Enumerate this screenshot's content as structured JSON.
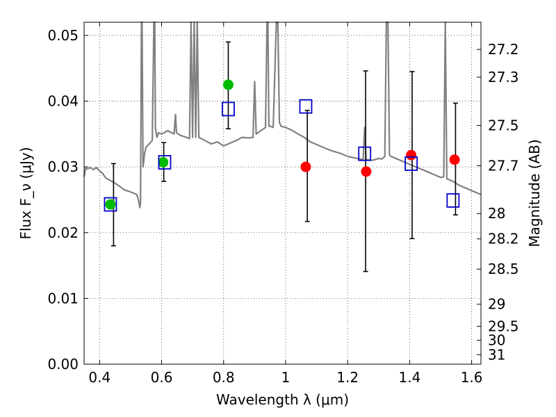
{
  "chart_data": {
    "type": "scatter",
    "xlabel": "Wavelength λ (μm)",
    "ylabel": "Flux F_ν (μJy)",
    "y2label": "Magnitude (AB)",
    "xlim": [
      0.35,
      1.63
    ],
    "ylim": [
      0.0,
      0.052
    ],
    "grid": true,
    "x_ticks": [
      {
        "value": 0.4,
        "label": "0.4"
      },
      {
        "value": 0.6,
        "label": "0.6"
      },
      {
        "value": 0.8,
        "label": "0.8"
      },
      {
        "value": 1.0,
        "label": "1"
      },
      {
        "value": 1.2,
        "label": "1.2"
      },
      {
        "value": 1.4,
        "label": "1.4"
      },
      {
        "value": 1.6,
        "label": "1.6"
      }
    ],
    "y_ticks": [
      {
        "value": 0.0,
        "label": "0.00"
      },
      {
        "value": 0.01,
        "label": "0.01"
      },
      {
        "value": 0.02,
        "label": "0.02"
      },
      {
        "value": 0.03,
        "label": "0.03"
      },
      {
        "value": 0.04,
        "label": "0.04"
      },
      {
        "value": 0.05,
        "label": "0.05"
      }
    ],
    "y2_ticks": [
      {
        "value": 27.2,
        "label": "27.2"
      },
      {
        "value": 27.3,
        "label": "27.3"
      },
      {
        "value": 27.5,
        "label": "27.5"
      },
      {
        "value": 27.7,
        "label": "27.7"
      },
      {
        "value": 28,
        "label": "28"
      },
      {
        "value": 28.2,
        "label": "28.2"
      },
      {
        "value": 28.5,
        "label": "28.5"
      },
      {
        "value": 29,
        "label": "29"
      },
      {
        "value": 29.5,
        "label": "29.5"
      },
      {
        "value": 30,
        "label": "30"
      },
      {
        "value": 31,
        "label": "31"
      }
    ],
    "model_spectrum": {
      "color": "#808080",
      "points": [
        [
          0.35,
          0.0285
        ],
        [
          0.355,
          0.0298
        ],
        [
          0.36,
          0.0297
        ],
        [
          0.37,
          0.0299
        ],
        [
          0.38,
          0.0296
        ],
        [
          0.39,
          0.0299
        ],
        [
          0.4,
          0.0294
        ],
        [
          0.41,
          0.029
        ],
        [
          0.42,
          0.0283
        ],
        [
          0.44,
          0.0278
        ],
        [
          0.46,
          0.0272
        ],
        [
          0.48,
          0.0265
        ],
        [
          0.5,
          0.0262
        ],
        [
          0.52,
          0.0258
        ],
        [
          0.525,
          0.025
        ],
        [
          0.53,
          0.0238
        ],
        [
          0.532,
          0.0245
        ],
        [
          0.535,
          0.052
        ],
        [
          0.537,
          0.052
        ],
        [
          0.54,
          0.03
        ],
        [
          0.545,
          0.032
        ],
        [
          0.55,
          0.033
        ],
        [
          0.56,
          0.0335
        ],
        [
          0.57,
          0.034
        ],
        [
          0.575,
          0.052
        ],
        [
          0.578,
          0.052
        ],
        [
          0.58,
          0.036
        ],
        [
          0.585,
          0.0345
        ],
        [
          0.59,
          0.0352
        ],
        [
          0.6,
          0.035
        ],
        [
          0.62,
          0.0355
        ],
        [
          0.64,
          0.035
        ],
        [
          0.645,
          0.038
        ],
        [
          0.648,
          0.0352
        ],
        [
          0.66,
          0.0348
        ],
        [
          0.68,
          0.0345
        ],
        [
          0.69,
          0.0343
        ],
        [
          0.695,
          0.052
        ],
        [
          0.7,
          0.0345
        ],
        [
          0.705,
          0.052
        ],
        [
          0.71,
          0.0345
        ],
        [
          0.715,
          0.052
        ],
        [
          0.72,
          0.0345
        ],
        [
          0.74,
          0.034
        ],
        [
          0.76,
          0.0335
        ],
        [
          0.78,
          0.0338
        ],
        [
          0.8,
          0.0332
        ],
        [
          0.82,
          0.0336
        ],
        [
          0.84,
          0.034
        ],
        [
          0.86,
          0.0345
        ],
        [
          0.88,
          0.0344
        ],
        [
          0.895,
          0.0345
        ],
        [
          0.9,
          0.043
        ],
        [
          0.905,
          0.035
        ],
        [
          0.92,
          0.0355
        ],
        [
          0.935,
          0.036
        ],
        [
          0.94,
          0.052
        ],
        [
          0.943,
          0.052
        ],
        [
          0.946,
          0.0362
        ],
        [
          0.95,
          0.0362
        ],
        [
          0.96,
          0.036
        ],
        [
          0.97,
          0.052
        ],
        [
          0.975,
          0.052
        ],
        [
          0.98,
          0.0368
        ],
        [
          0.985,
          0.0362
        ],
        [
          1.0,
          0.036
        ],
        [
          1.02,
          0.0356
        ],
        [
          1.04,
          0.035
        ],
        [
          1.06,
          0.0345
        ],
        [
          1.08,
          0.0338
        ],
        [
          1.1,
          0.0334
        ],
        [
          1.12,
          0.033
        ],
        [
          1.14,
          0.0326
        ],
        [
          1.16,
          0.0323
        ],
        [
          1.18,
          0.032
        ],
        [
          1.2,
          0.0316
        ],
        [
          1.22,
          0.0314
        ],
        [
          1.24,
          0.0312
        ],
        [
          1.25,
          0.0311
        ],
        [
          1.255,
          0.036
        ],
        [
          1.26,
          0.0311
        ],
        [
          1.28,
          0.031
        ],
        [
          1.3,
          0.0313
        ],
        [
          1.31,
          0.0312
        ],
        [
          1.32,
          0.0316
        ],
        [
          1.325,
          0.052
        ],
        [
          1.33,
          0.052
        ],
        [
          1.335,
          0.0318
        ],
        [
          1.34,
          0.0316
        ],
        [
          1.36,
          0.0312
        ],
        [
          1.38,
          0.0308
        ],
        [
          1.4,
          0.0304
        ],
        [
          1.42,
          0.03
        ],
        [
          1.44,
          0.0296
        ],
        [
          1.46,
          0.0292
        ],
        [
          1.48,
          0.0288
        ],
        [
          1.5,
          0.0284
        ],
        [
          1.51,
          0.0285
        ],
        [
          1.515,
          0.052
        ],
        [
          1.52,
          0.0282
        ],
        [
          1.54,
          0.0278
        ],
        [
          1.56,
          0.0272
        ],
        [
          1.57,
          0.027
        ],
        [
          1.58,
          0.0268
        ],
        [
          1.6,
          0.0264
        ],
        [
          1.62,
          0.026
        ],
        [
          1.63,
          0.0258
        ]
      ]
    },
    "series": [
      {
        "marker": "circle",
        "color": "#00bb00",
        "points": [
          [
            0.435,
            0.0243
          ],
          [
            0.605,
            0.0307
          ],
          [
            0.815,
            0.0425
          ]
        ]
      },
      {
        "marker": "circle",
        "color": "#ff0000",
        "points": [
          [
            1.065,
            0.03
          ],
          [
            1.26,
            0.0293
          ],
          [
            1.405,
            0.0318
          ],
          [
            1.545,
            0.0311
          ]
        ]
      },
      {
        "marker": "open-square",
        "color": "#0000cc",
        "points": [
          [
            0.435,
            0.0243
          ],
          [
            0.61,
            0.0307
          ],
          [
            0.815,
            0.0388
          ],
          [
            1.065,
            0.0392
          ],
          [
            1.255,
            0.032
          ],
          [
            1.405,
            0.0305
          ],
          [
            1.54,
            0.0249
          ]
        ]
      }
    ],
    "error_bars": [
      {
        "x": 0.445,
        "low": 0.018,
        "high": 0.0305
      },
      {
        "x": 0.607,
        "low": 0.0278,
        "high": 0.0337
      },
      {
        "x": 0.815,
        "low": 0.0358,
        "high": 0.049
      },
      {
        "x": 1.07,
        "low": 0.0217,
        "high": 0.0386
      },
      {
        "x": 1.258,
        "low": 0.0141,
        "high": 0.0446
      },
      {
        "x": 1.408,
        "low": 0.0191,
        "high": 0.0445
      },
      {
        "x": 1.548,
        "low": 0.0227,
        "high": 0.0397
      }
    ]
  }
}
